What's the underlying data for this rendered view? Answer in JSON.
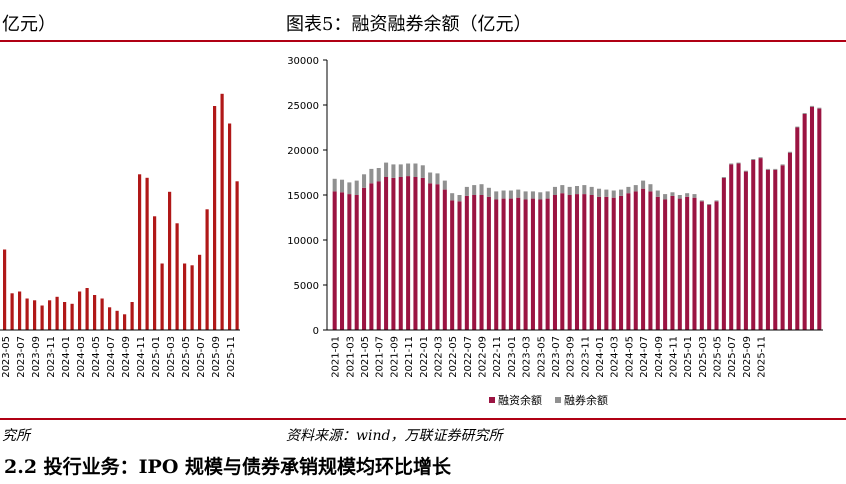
{
  "header": {
    "left_title": "亿元）",
    "right_title": "图表5：融资融券余额（亿元）"
  },
  "source": {
    "left": "究所",
    "right": "资料来源：wind，万联证券研究所"
  },
  "section_heading": "2.2 投行业务：IPO 规模与债券承销规模均环比增长",
  "chart_data": [
    {
      "type": "bar",
      "title": "",
      "series": [
        {
          "name": "",
          "color": "#b01818",
          "values": [
            46,
            21,
            22,
            18,
            17,
            14,
            17,
            19,
            16,
            15,
            22,
            24,
            20,
            18,
            13,
            11,
            9,
            16,
            89,
            87,
            65,
            38,
            79,
            61,
            38,
            37,
            43,
            69,
            128,
            135,
            118,
            85
          ]
        }
      ],
      "ylim": [
        0,
        140
      ],
      "xlabels": [
        "2023-05",
        "2023-07",
        "2023-09",
        "2023-11",
        "2024-01",
        "2024-03",
        "2024-05",
        "2024-07",
        "2024-09",
        "2024-11",
        "2025-01",
        "2025-03",
        "2025-05",
        "2025-07",
        "2025-09",
        "2025-11"
      ]
    },
    {
      "type": "bar",
      "stacked": true,
      "title": "融资融券余额（亿元）",
      "ylim": [
        0,
        30000
      ],
      "yticks": [
        "0",
        "5000",
        "10000",
        "15000",
        "20000",
        "25000",
        "30000"
      ],
      "xlabels": [
        "2021-01",
        "2021-03",
        "2021-05",
        "2021-07",
        "2021-09",
        "2021-11",
        "2022-01",
        "2022-03",
        "2022-05",
        "2022-07",
        "2022-09",
        "2022-11",
        "2023-01",
        "2023-03",
        "2023-05",
        "2023-07",
        "2023-09",
        "2023-11",
        "2024-01",
        "2024-03",
        "2024-05",
        "2024-07",
        "2024-09",
        "2024-11",
        "2025-01",
        "2025-03",
        "2025-05",
        "2025-07",
        "2025-09",
        "2025-11"
      ],
      "series": [
        {
          "name": "融资余额",
          "color": "#9b1442",
          "values": [
            15400,
            15300,
            15100,
            15000,
            15800,
            16300,
            16500,
            17000,
            16900,
            17000,
            17100,
            17000,
            16900,
            16300,
            16200,
            15600,
            14400,
            14300,
            14900,
            15000,
            15000,
            14800,
            14500,
            14600,
            14600,
            14700,
            14500,
            14600,
            14500,
            14600,
            15000,
            15200,
            15000,
            15100,
            15100,
            15000,
            14800,
            14800,
            14700,
            14900,
            15200,
            15400,
            15700,
            15400,
            14800,
            14500,
            14900,
            14600,
            14800,
            14700,
            14300,
            13900,
            14300,
            16900,
            18400,
            18500,
            17600,
            18900,
            19100,
            17800,
            17800,
            18300,
            19700,
            22500,
            24000,
            24800,
            24600
          ]
        },
        {
          "name": "融券余额",
          "color": "#909090",
          "values": [
            1400,
            1400,
            1300,
            1600,
            1500,
            1600,
            1500,
            1600,
            1500,
            1400,
            1400,
            1500,
            1400,
            1200,
            1200,
            1000,
            800,
            700,
            1000,
            1100,
            1200,
            1000,
            900,
            900,
            900,
            900,
            900,
            800,
            800,
            800,
            900,
            900,
            900,
            900,
            1000,
            900,
            900,
            800,
            800,
            700,
            700,
            700,
            900,
            800,
            700,
            600,
            400,
            400,
            400,
            400,
            100,
            100,
            100,
            100,
            100,
            100,
            100,
            100,
            100,
            100,
            100,
            100,
            100,
            100,
            100,
            100,
            100
          ]
        }
      ]
    }
  ]
}
